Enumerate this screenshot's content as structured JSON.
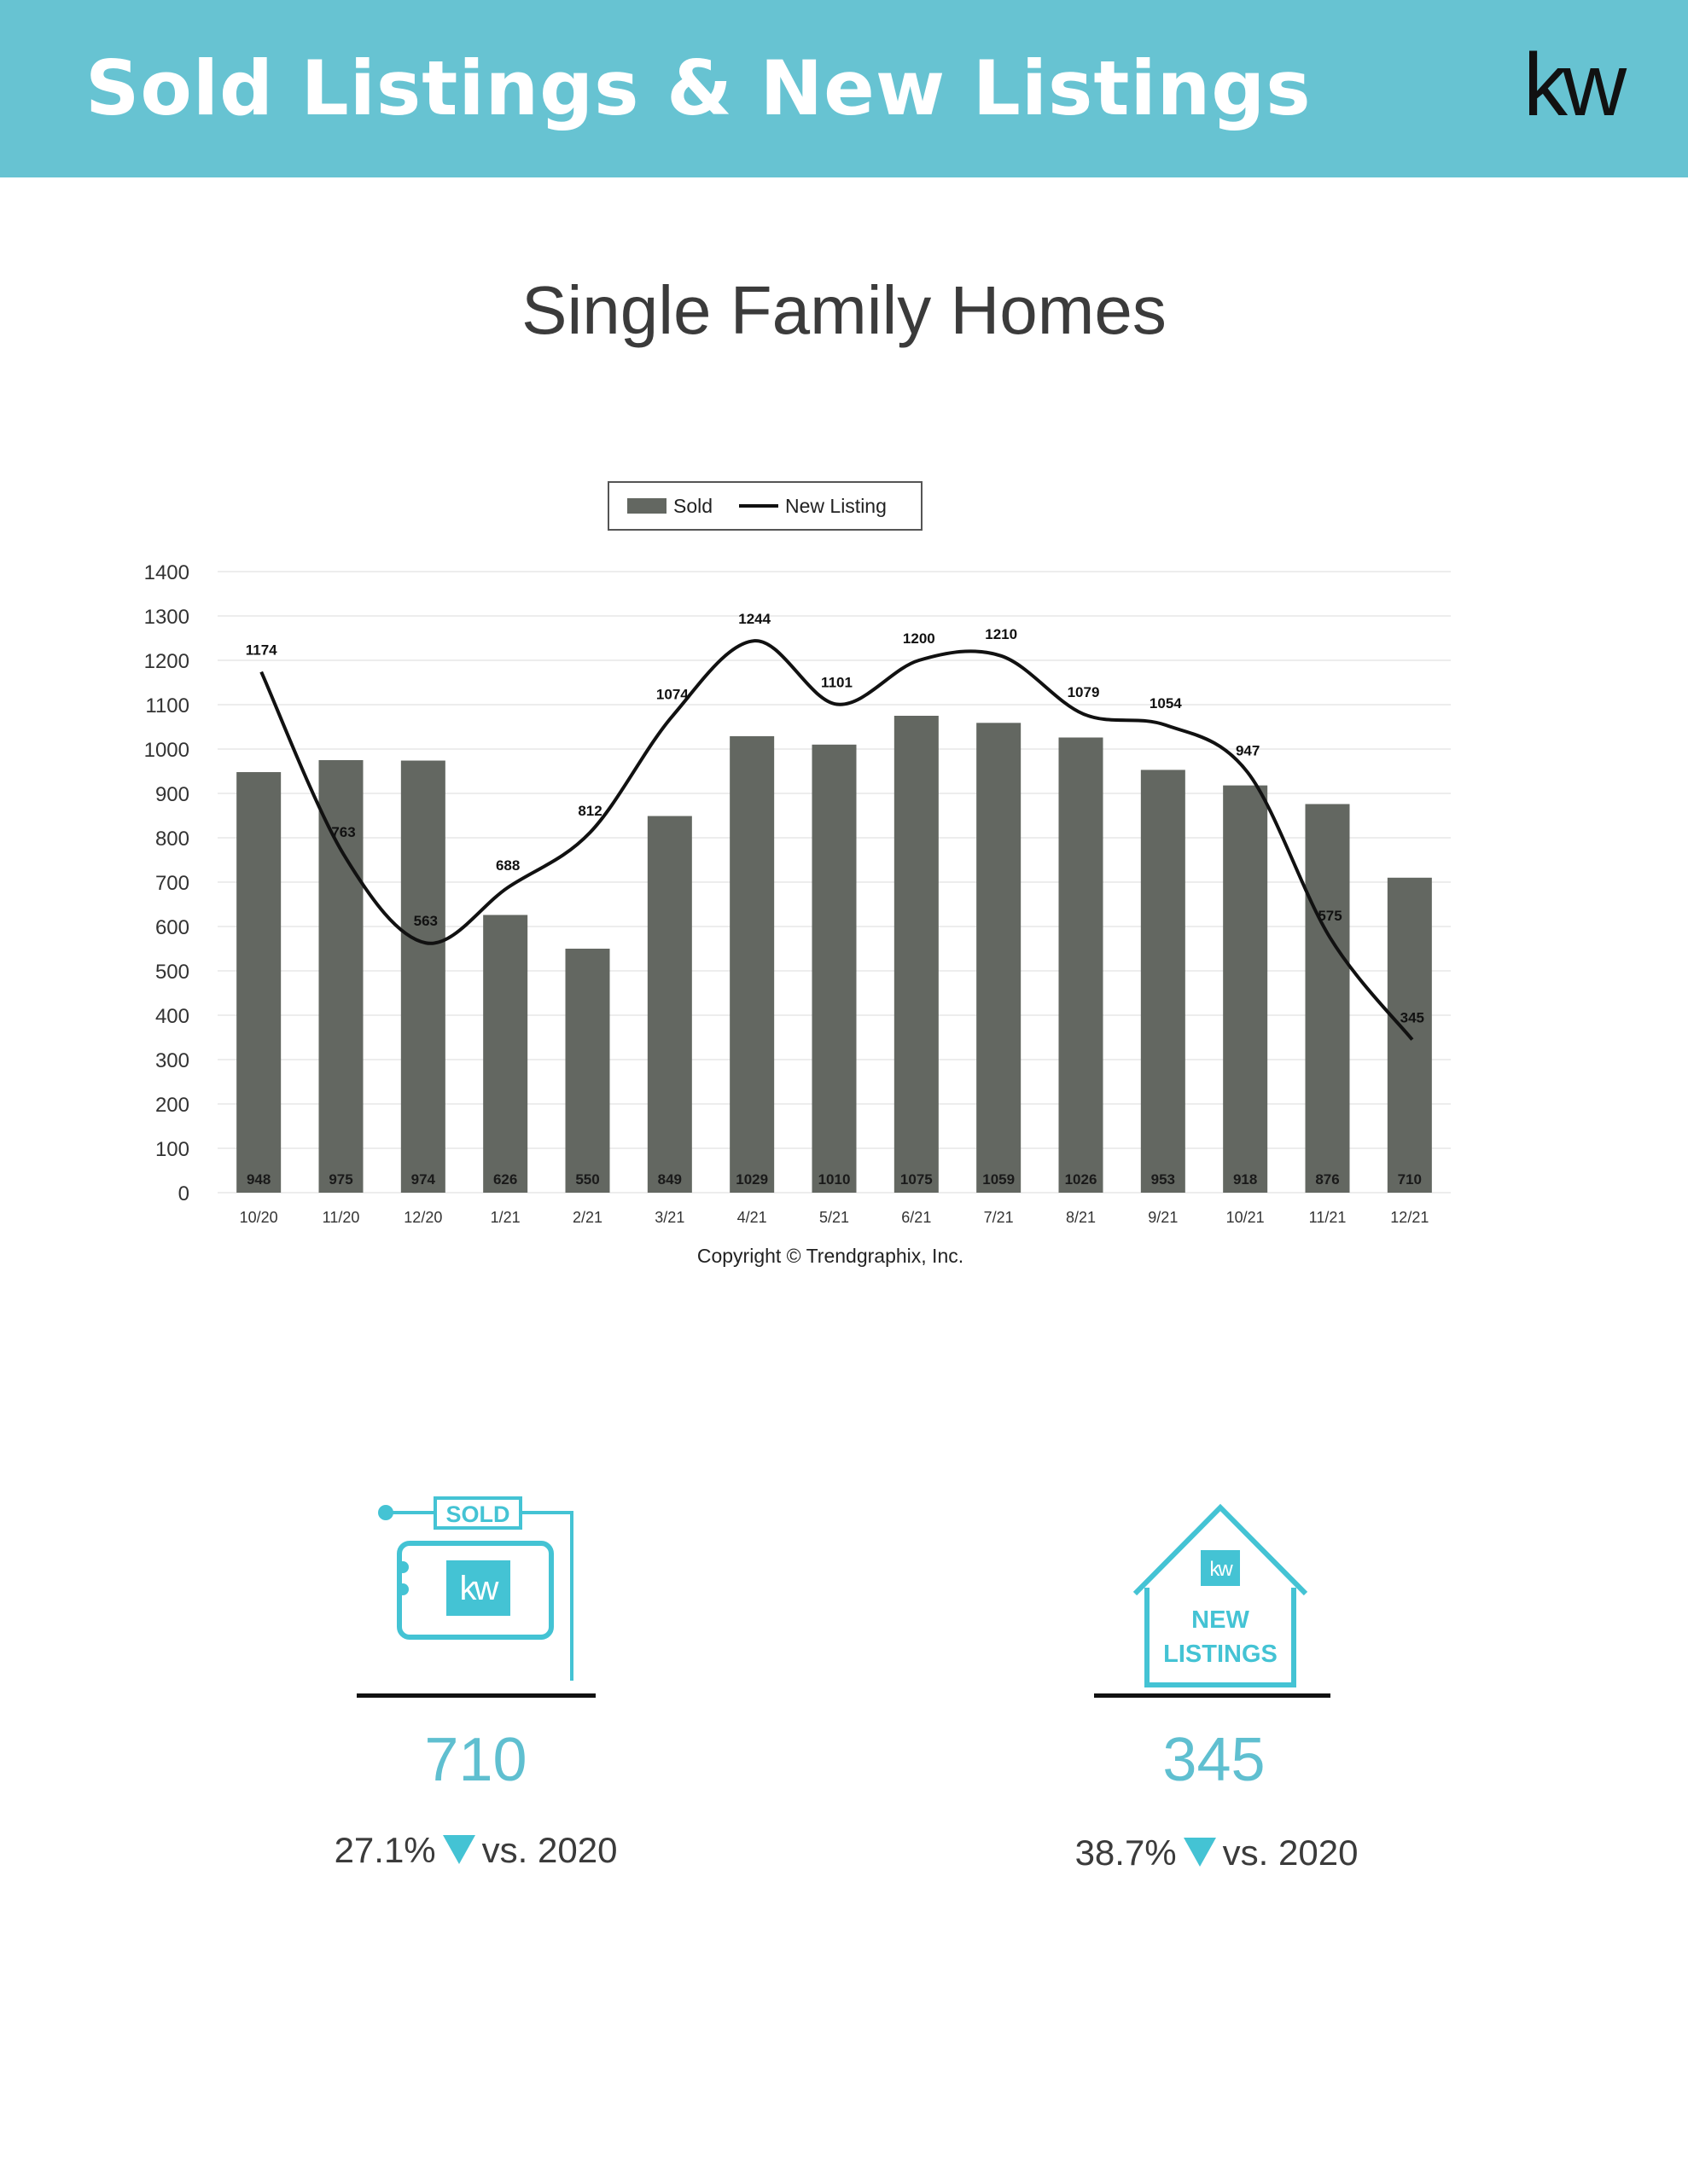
{
  "header": {
    "title": "Sold Listings & New Listings",
    "logo_text": "kw"
  },
  "section_title": "Single Family Homes",
  "chart_data": {
    "type": "bar",
    "categories": [
      "10/20",
      "11/20",
      "12/20",
      "1/21",
      "2/21",
      "3/21",
      "4/21",
      "5/21",
      "6/21",
      "7/21",
      "8/21",
      "9/21",
      "10/21",
      "11/21",
      "12/21"
    ],
    "series": [
      {
        "name": "Sold",
        "type": "bar",
        "color": "#636761",
        "values": [
          948,
          975,
          974,
          626,
          550,
          849,
          1029,
          1010,
          1075,
          1059,
          1026,
          953,
          918,
          876,
          710
        ]
      },
      {
        "name": "New Listing",
        "type": "line",
        "color": "#111111",
        "values": [
          1174,
          763,
          563,
          688,
          812,
          1074,
          1244,
          1101,
          1200,
          1210,
          1079,
          1054,
          947,
          575,
          345
        ]
      }
    ],
    "ylim": [
      0,
      1400
    ],
    "yticks": [
      0,
      100,
      200,
      300,
      400,
      500,
      600,
      700,
      800,
      900,
      1000,
      1100,
      1200,
      1300,
      1400
    ],
    "legend_position": "top-center",
    "grid": true,
    "source": "Copyright © Trendgraphix, Inc."
  },
  "stats": {
    "sold": {
      "icon_label": "SOLD",
      "icon_logo": "kw",
      "value": "710",
      "percent": "27.1%",
      "direction": "down",
      "comparison": "vs.  2020"
    },
    "new_listings": {
      "icon_label_line1": "NEW",
      "icon_label_line2": "LISTINGS",
      "icon_logo": "kw",
      "value": "345",
      "percent": "38.7%",
      "direction": "down",
      "comparison": "vs. 2020"
    }
  },
  "colors": {
    "header_bg": "#67c3d2",
    "accent": "#5fbfd0",
    "bar": "#636761",
    "line": "#111111"
  }
}
